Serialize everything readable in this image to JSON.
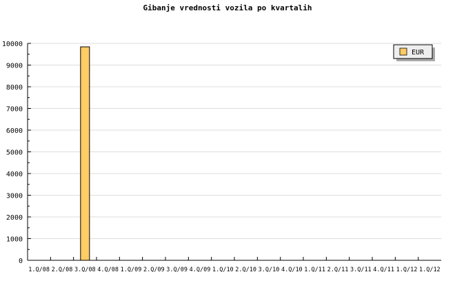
{
  "chart_data": {
    "type": "bar",
    "title": "Gibanje vrednosti vozila po kvartalih",
    "xlabel": "",
    "ylabel": "",
    "categories": [
      "1.Q/08",
      "2.Q/08",
      "3.Q/08",
      "4.Q/08",
      "1.Q/09",
      "2.Q/09",
      "3.Q/09",
      "4.Q/09",
      "1.Q/10",
      "2.Q/10",
      "3.Q/10",
      "4.Q/10",
      "1.Q/11",
      "2.Q/11",
      "3.Q/11",
      "4.Q/11",
      "1.Q/12",
      "1.Q/12"
    ],
    "series": [
      {
        "name": "EUR",
        "color": "#ffcc66",
        "values": [
          0,
          0,
          9840,
          0,
          0,
          0,
          0,
          0,
          0,
          0,
          0,
          0,
          0,
          0,
          0,
          0,
          0,
          0
        ]
      }
    ],
    "ylim": [
      0,
      10000
    ],
    "yticks": [
      "0",
      "1000",
      "2000",
      "3000",
      "4000",
      "5000",
      "6000",
      "7000",
      "8000",
      "9000",
      "10000"
    ],
    "grid": true,
    "legend_placement": "top-right"
  }
}
